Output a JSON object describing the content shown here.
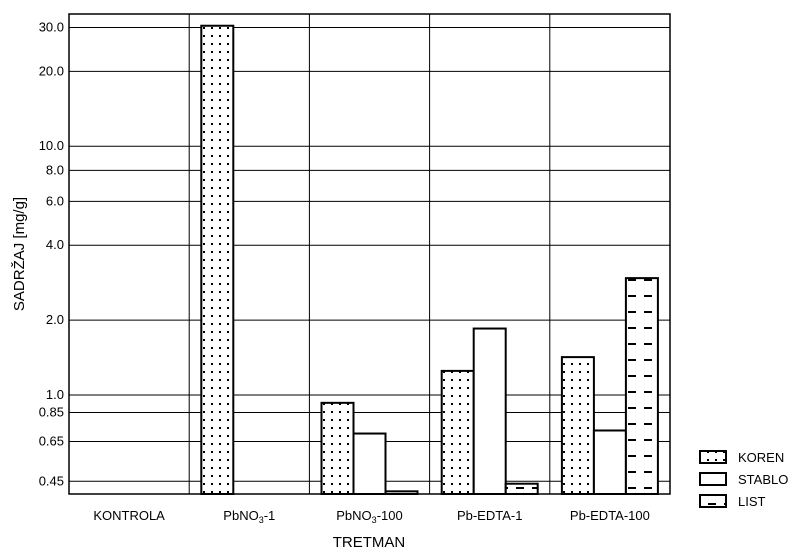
{
  "chart_data": {
    "type": "bar",
    "title": "",
    "xlabel": "TRETMAN",
    "ylabel": "SADRŽAJ  [mg/g]",
    "yscale": "log",
    "ylim": [
      0.4,
      34
    ],
    "yticks": [
      0.45,
      0.65,
      0.85,
      1.0,
      2.0,
      4.0,
      6.0,
      8.0,
      10.0,
      20.0,
      30.0
    ],
    "ytick_labels": [
      "0.45",
      "0.65",
      "0.85",
      "1.0",
      "2.0",
      "4.0",
      "6.0",
      "8.0",
      "10.0",
      "20.0",
      "30.0"
    ],
    "categories": [
      "KONTROLA",
      "PbNO3-1",
      "PbNO3-100",
      "Pb-EDTA-1",
      "Pb-EDTA-100"
    ],
    "category_labels": [
      {
        "main": "KONTROLA",
        "sub": "",
        "tail": ""
      },
      {
        "main": "PbNO",
        "sub": "3",
        "tail": "-1"
      },
      {
        "main": "PbNO",
        "sub": "3",
        "tail": "-100"
      },
      {
        "main": "Pb-EDTA-1",
        "sub": "",
        "tail": ""
      },
      {
        "main": "Pb-EDTA-100",
        "sub": "",
        "tail": ""
      }
    ],
    "series": [
      {
        "name": "KOREN",
        "pattern": "dots",
        "values": [
          null,
          30.5,
          0.93,
          1.25,
          1.42
        ]
      },
      {
        "name": "STABLO",
        "pattern": "plain",
        "values": [
          null,
          null,
          0.7,
          1.85,
          0.72
        ]
      },
      {
        "name": "LIST",
        "pattern": "dashes",
        "values": [
          null,
          null,
          0.41,
          0.44,
          2.95
        ]
      }
    ],
    "grid": true,
    "legend_position": "bottom-right"
  }
}
